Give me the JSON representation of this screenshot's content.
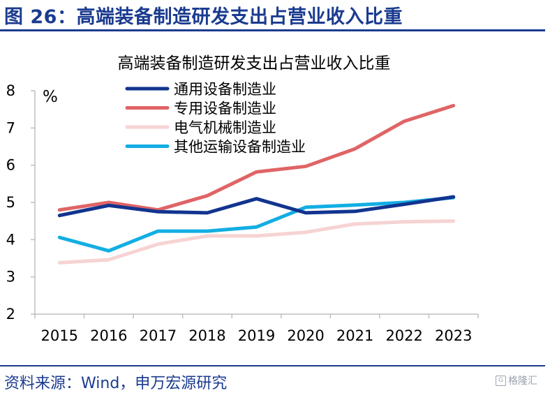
{
  "header": {
    "figure_title": "图 26：高端装备制造研发支出占营业收入比重"
  },
  "footer": {
    "source": "资料来源：Wind，申万宏源研究",
    "watermark": "格隆汇"
  },
  "chart_data": {
    "type": "line",
    "title": "高端装备制造研发支出占营业收入比重",
    "unit": "%",
    "x": [
      "2015",
      "2016",
      "2017",
      "2018",
      "2019",
      "2020",
      "2021",
      "2022",
      "2023"
    ],
    "ylim": [
      2,
      8
    ],
    "yticks": [
      2,
      3,
      4,
      5,
      6,
      7,
      8
    ],
    "grid": false,
    "legend_position": "top-center",
    "series": [
      {
        "name": "通用设备制造业",
        "color": "#12348f",
        "values": [
          4.65,
          4.92,
          4.75,
          4.72,
          5.1,
          4.72,
          4.76,
          4.95,
          5.15
        ]
      },
      {
        "name": "专用设备制造业",
        "color": "#e06466",
        "values": [
          4.8,
          5.0,
          4.8,
          5.18,
          5.82,
          5.97,
          6.44,
          7.18,
          7.6
        ]
      },
      {
        "name": "电气机械制造业",
        "color": "#f6d3d3",
        "values": [
          3.38,
          3.46,
          3.88,
          4.1,
          4.1,
          4.2,
          4.42,
          4.48,
          4.5
        ]
      },
      {
        "name": "其他运输设备制造业",
        "color": "#12aee3",
        "values": [
          4.06,
          3.7,
          4.23,
          4.23,
          4.34,
          4.87,
          4.93,
          5.0,
          5.13
        ]
      }
    ]
  }
}
